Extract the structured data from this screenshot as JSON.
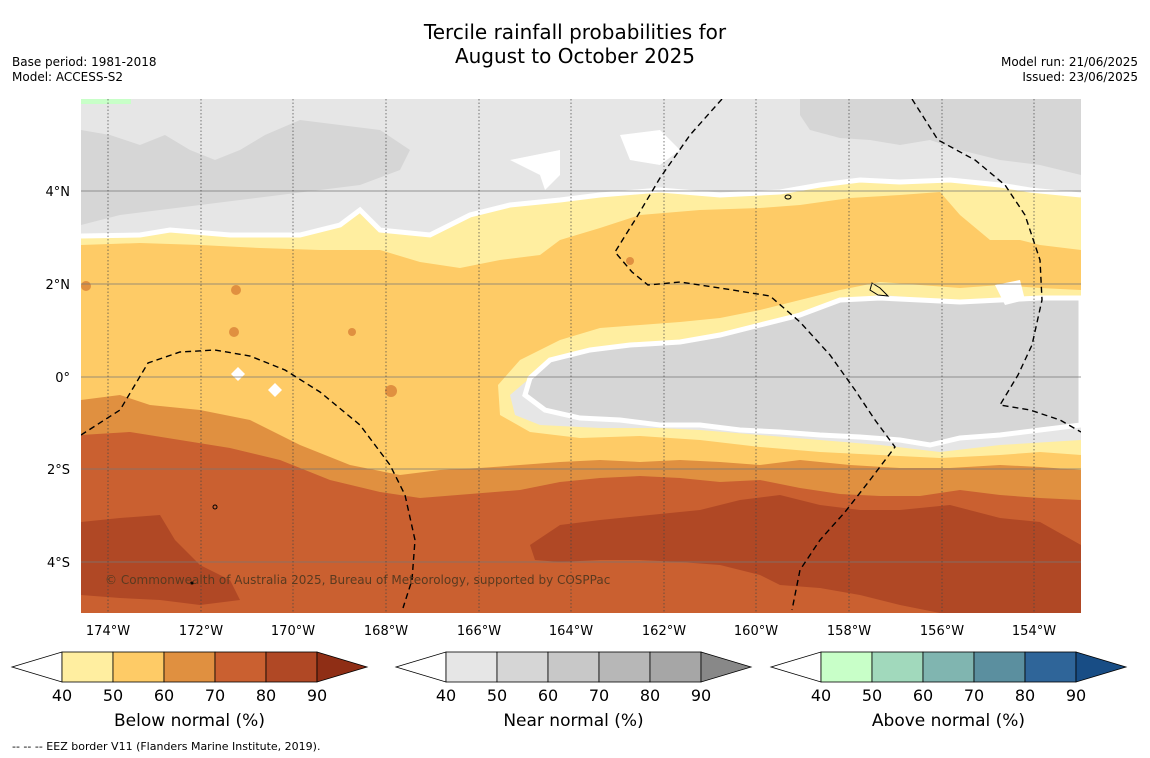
{
  "title_line1": "Tercile rainfall probabilities for",
  "title_line2": "August to October 2025",
  "base_period": "Base period: 1981-2018",
  "model": "Model: ACCESS-S2",
  "model_run": "Model run: 21/06/2025",
  "issued": "Issued: 23/06/2025",
  "copyright": "© Commonwealth of Australia 2025, Bureau of Meteorology, supported by COSPPac",
  "footnote": "-- -- -- EEZ border V11 (Flanders Marine Institute, 2019).",
  "lat_labels": [
    "4°N",
    "2°N",
    "0°",
    "2°S",
    "4°S"
  ],
  "lon_labels": [
    "174°W",
    "172°W",
    "170°W",
    "168°W",
    "166°W",
    "164°W",
    "162°W",
    "160°W",
    "158°W",
    "156°W",
    "154°W"
  ],
  "colorbars": [
    {
      "title": "Below normal (%)",
      "ticks": [
        "40",
        "50",
        "60",
        "70",
        "80",
        "90"
      ],
      "colors": [
        "#ffeea0",
        "#fecb66",
        "#e09040",
        "#ca6030",
        "#b04825",
        "#8f2e15"
      ]
    },
    {
      "title": "Near normal (%)",
      "ticks": [
        "40",
        "50",
        "60",
        "70",
        "80",
        "90"
      ],
      "colors": [
        "#e6e6e6",
        "#d6d6d6",
        "#c8c8c8",
        "#b7b7b7",
        "#a6a6a6",
        "#888888"
      ]
    },
    {
      "title": "Above normal (%)",
      "ticks": [
        "40",
        "50",
        "60",
        "70",
        "80",
        "90"
      ],
      "colors": [
        "#c8ffc8",
        "#a1d9bc",
        "#80b5b0",
        "#5b8f9f",
        "#2f6599",
        "#184d85"
      ]
    }
  ],
  "map_colors": {
    "below_50": "#ffeea0",
    "below_60": "#fecb66",
    "below_70": "#e09040",
    "below_80": "#ca6030",
    "below_90": "#b04825",
    "near_40": "#e6e6e6",
    "near_50": "#d6d6d6",
    "above_40": "#c8ffc8"
  }
}
